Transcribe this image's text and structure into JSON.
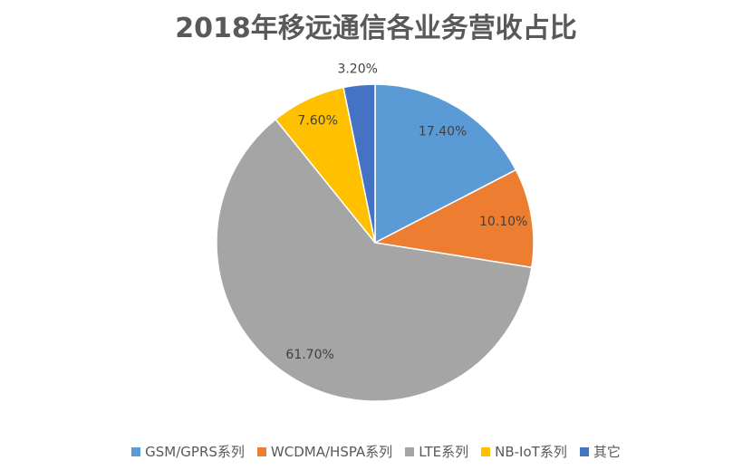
{
  "chart_data": {
    "type": "pie",
    "title": "2018年移远通信各业务营收占比",
    "categories": [
      "GSM/GPRS系列",
      "WCDMA/HSPA系列",
      "LTE系列",
      "NB-IoT系列",
      "其它"
    ],
    "values": [
      17.4,
      10.1,
      61.7,
      7.6,
      3.2
    ],
    "value_labels": [
      "17.40%",
      "10.10%",
      "61.70%",
      "7.60%",
      "3.20%"
    ],
    "colors": [
      "#5b9bd5",
      "#ed7d31",
      "#a5a5a5",
      "#ffc000",
      "#4472c4"
    ],
    "legend": "bottom"
  }
}
